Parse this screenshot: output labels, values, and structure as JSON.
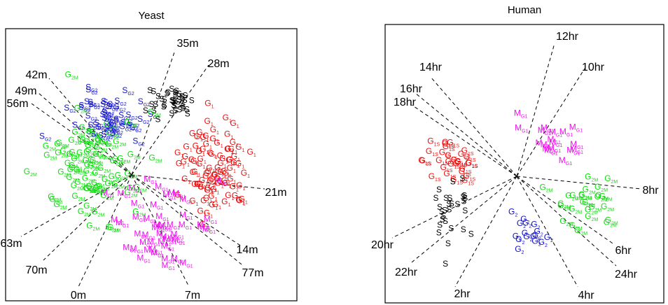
{
  "chart_data": [
    {
      "type": "scatter",
      "title": "Yeast",
      "axes": "none (frame only)",
      "colors": {
        "G1": "#ee1111",
        "S": "#000000",
        "G2": "#1111cc",
        "G2M": "#11dd11",
        "M": "#ee11ee"
      },
      "rays": [
        "0m",
        "7m",
        "14m",
        "21m",
        "28m",
        "35m",
        "42m",
        "49m",
        "56m",
        "63m",
        "70m",
        "77m"
      ],
      "phase_clusters": [
        {
          "label": "G1",
          "count": 95
        },
        {
          "label": "S",
          "count": 40
        },
        {
          "label": "S G2",
          "count": 55
        },
        {
          "label": "G2M",
          "count": 90
        },
        {
          "label": "M G1",
          "count": 50
        }
      ]
    },
    {
      "type": "scatter",
      "title": "Human",
      "axes": "none (frame only)",
      "colors": {
        "G1": "#ee1111",
        "S": "#000000",
        "G2": "#1111cc",
        "G2M": "#11dd11",
        "M": "#ee11ee"
      },
      "rays": [
        "2hr",
        "4hr",
        "6hr",
        "8hr",
        "10hr",
        "12hr",
        "14hr",
        "16hr",
        "18hr",
        "20hr",
        "22hr",
        "24hr"
      ],
      "phase_clusters": [
        {
          "label": "G1 S",
          "count": 30
        },
        {
          "label": "S",
          "count": 28
        },
        {
          "label": "G2",
          "count": 16
        },
        {
          "label": "G2M",
          "count": 26
        },
        {
          "label": "M G1",
          "count": 18
        }
      ]
    }
  ]
}
